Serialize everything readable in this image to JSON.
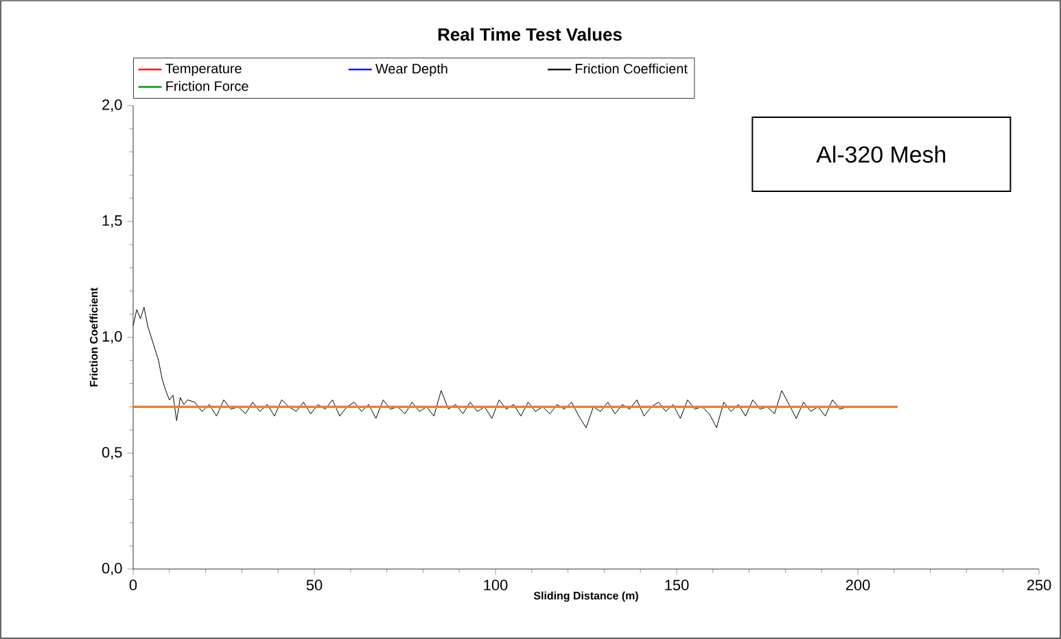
{
  "chart_data": {
    "type": "line",
    "title": "Real Time Test Values",
    "xlabel": "Sliding Distance (m)",
    "ylabel": "Friction Coefficient",
    "annotations": [
      "Al-320 Mesh"
    ],
    "xlim": [
      0,
      250
    ],
    "xticks": [
      0,
      50,
      100,
      150,
      200,
      250
    ],
    "ylim": [
      0,
      2
    ],
    "yticks": [
      {
        "value": 0,
        "label": "0,0"
      },
      {
        "value": 0.5,
        "label": "0,5"
      },
      {
        "value": 1,
        "label": "1,0"
      },
      {
        "value": 1.5,
        "label": "1,5"
      },
      {
        "value": 2,
        "label": "2,0"
      }
    ],
    "grid": false,
    "legend": "top",
    "marker": "none",
    "line_style": "solid",
    "series": [
      {
        "name": "Temperature",
        "color": "#ff0000"
      },
      {
        "name": "Wear Depth",
        "color": "#0000ff"
      },
      {
        "name": "Friction Coefficient",
        "color": "#000000",
        "x": [
          0,
          1,
          2,
          3,
          4,
          5,
          6,
          7,
          8,
          9,
          10,
          11,
          12,
          13,
          14,
          15,
          17,
          19,
          21,
          23,
          25,
          27,
          29,
          31,
          33,
          35,
          37,
          39,
          41,
          43,
          45,
          47,
          49,
          51,
          53,
          55,
          57,
          59,
          61,
          63,
          65,
          67,
          69,
          71,
          73,
          75,
          77,
          79,
          81,
          83,
          85,
          87,
          89,
          91,
          93,
          95,
          97,
          99,
          101,
          103,
          105,
          107,
          109,
          111,
          113,
          115,
          117,
          119,
          121,
          123,
          125,
          127,
          129,
          131,
          133,
          135,
          137,
          139,
          141,
          143,
          145,
          147,
          149,
          151,
          153,
          155,
          157,
          159,
          161,
          163,
          165,
          167,
          169,
          171,
          173,
          175,
          177,
          179,
          181,
          183,
          185,
          187,
          189,
          191,
          193,
          195,
          197
        ],
        "values": [
          1.05,
          1.12,
          1.08,
          1.13,
          1.05,
          1.0,
          0.95,
          0.9,
          0.82,
          0.77,
          0.73,
          0.75,
          0.64,
          0.74,
          0.71,
          0.73,
          0.72,
          0.68,
          0.71,
          0.66,
          0.73,
          0.69,
          0.7,
          0.67,
          0.72,
          0.68,
          0.71,
          0.66,
          0.73,
          0.7,
          0.68,
          0.72,
          0.67,
          0.71,
          0.69,
          0.73,
          0.66,
          0.7,
          0.72,
          0.68,
          0.71,
          0.65,
          0.73,
          0.69,
          0.7,
          0.67,
          0.72,
          0.68,
          0.7,
          0.66,
          0.77,
          0.69,
          0.71,
          0.67,
          0.72,
          0.68,
          0.7,
          0.65,
          0.73,
          0.69,
          0.71,
          0.66,
          0.72,
          0.68,
          0.7,
          0.67,
          0.71,
          0.69,
          0.72,
          0.66,
          0.61,
          0.7,
          0.68,
          0.72,
          0.67,
          0.71,
          0.69,
          0.73,
          0.66,
          0.7,
          0.72,
          0.68,
          0.71,
          0.65,
          0.73,
          0.69,
          0.7,
          0.67,
          0.61,
          0.72,
          0.68,
          0.71,
          0.66,
          0.73,
          0.69,
          0.7,
          0.67,
          0.77,
          0.71,
          0.65,
          0.72,
          0.68,
          0.7,
          0.66,
          0.73,
          0.69,
          0.7
        ]
      },
      {
        "name": "Friction Force",
        "color": "#00a000"
      },
      {
        "color": "#ed7d31",
        "x": [
          0,
          211
        ],
        "values": [
          0.7,
          0.7
        ]
      }
    ]
  }
}
